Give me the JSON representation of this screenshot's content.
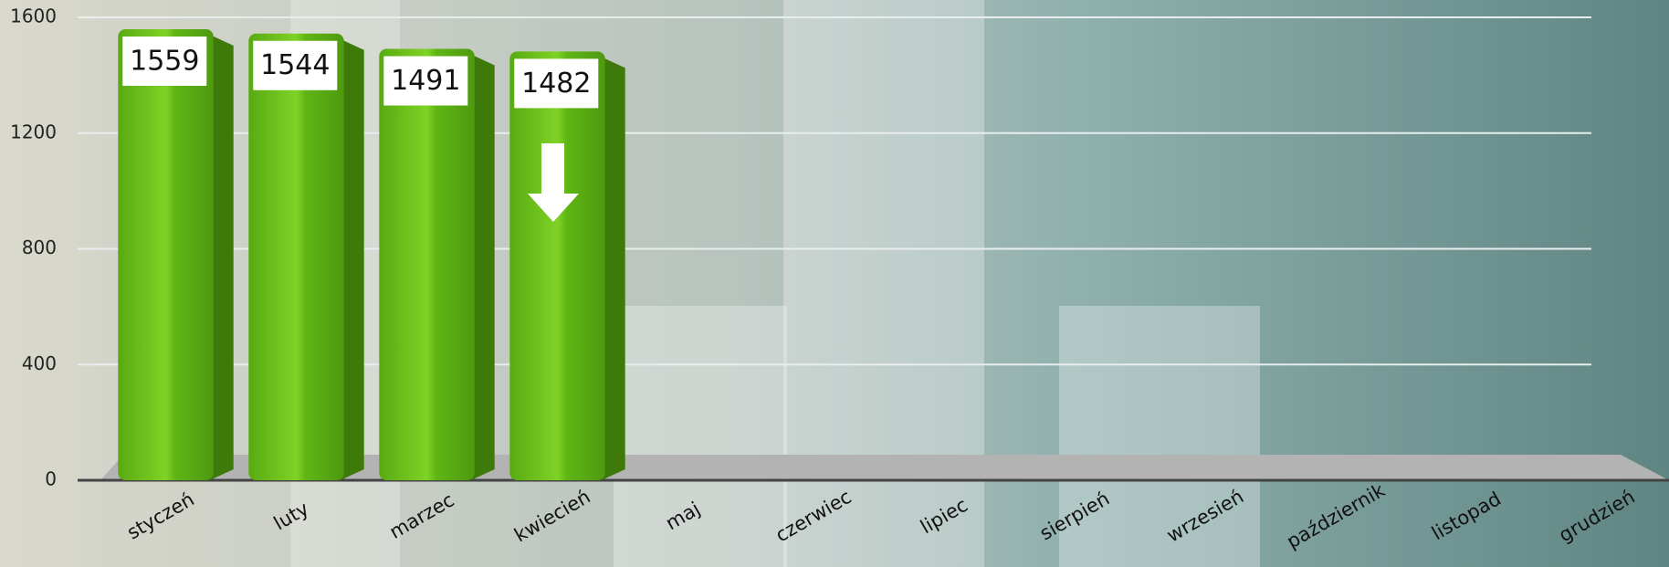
{
  "chart_data": {
    "type": "bar",
    "categories": [
      "styczeń",
      "luty",
      "marzec",
      "kwiecień",
      "maj",
      "czerwiec",
      "lipiec",
      "sierpień",
      "wrzesień",
      "październik",
      "listopad",
      "grudzień"
    ],
    "values": [
      1559,
      1544,
      1491,
      1482,
      null,
      null,
      null,
      null,
      null,
      null,
      null,
      null
    ],
    "color": "#5fb514",
    "ylim": [
      0,
      1600
    ],
    "yticks": [
      0,
      400,
      800,
      1200,
      1600
    ],
    "grid": true
  }
}
